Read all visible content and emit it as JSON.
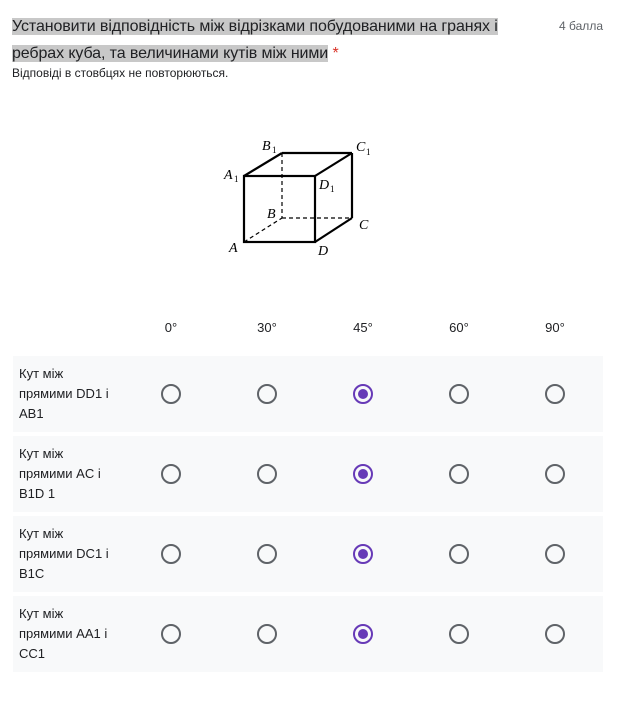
{
  "question": {
    "title": "Установити відповідність між відрізками побудованими на гранях і ребрах куба, та величинами кутів між ними",
    "required_mark": "*",
    "points": "4 балла",
    "description": "Відповіді в стовбцях не повторюються."
  },
  "figure": {
    "labels": {
      "A": "A",
      "B": "B",
      "C": "C",
      "D": "D",
      "A1": "A",
      "B1": "B",
      "C1": "C",
      "D1": "D",
      "sub": "1"
    }
  },
  "columns": [
    "0°",
    "30°",
    "45°",
    "60°",
    "90°"
  ],
  "rows": [
    {
      "label": "Кут між прямими DD1 і AB1",
      "selected": "45°"
    },
    {
      "label": "Кут між прямими AC і B1D 1",
      "selected": "45°"
    },
    {
      "label": "Кут між прямими DC1 і B1C",
      "selected": "45°"
    },
    {
      "label": "Кут між прямими AA1 і CC1",
      "selected": "45°"
    }
  ],
  "colors": {
    "accent": "#673ab7",
    "required": "#d93025",
    "row_bg": "#f8f9fa"
  }
}
